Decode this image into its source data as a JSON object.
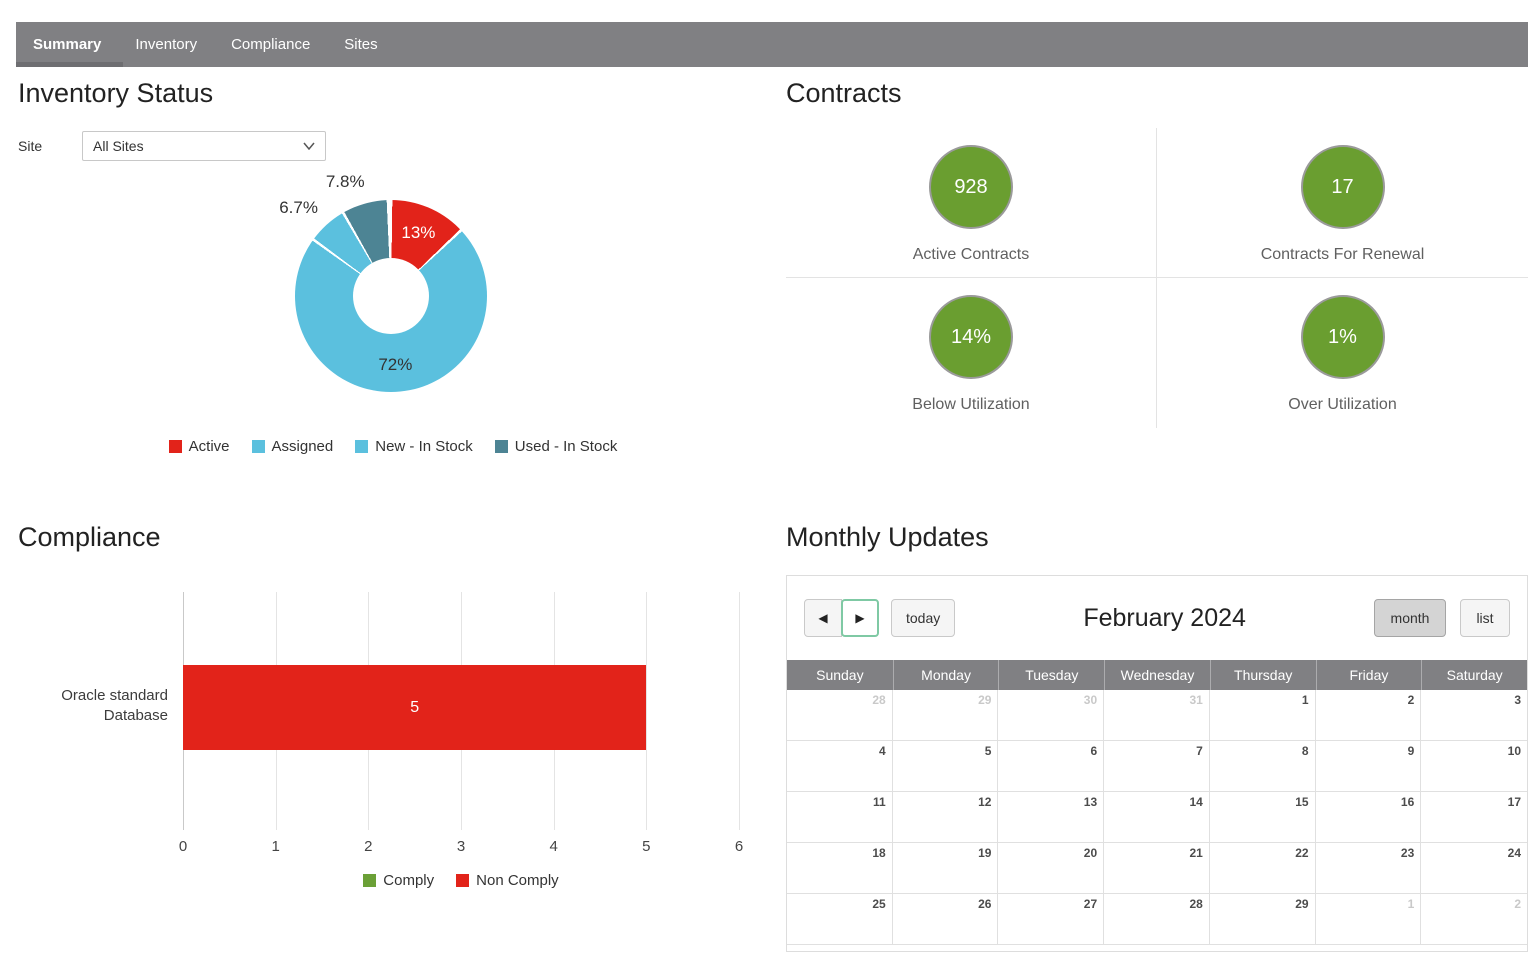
{
  "tabs": {
    "items": [
      {
        "label": "Summary",
        "active": true
      },
      {
        "label": "Inventory",
        "active": false
      },
      {
        "label": "Compliance",
        "active": false
      },
      {
        "label": "Sites",
        "active": false
      }
    ]
  },
  "inventory_status": {
    "title": "Inventory Status",
    "site_label": "Site",
    "site_value": "All Sites"
  },
  "contracts": {
    "title": "Contracts",
    "tiles": [
      {
        "value": "928",
        "label": "Active Contracts"
      },
      {
        "value": "17",
        "label": "Contracts For Renewal"
      },
      {
        "value": "14%",
        "label": "Below Utilization"
      },
      {
        "value": "1%",
        "label": "Over Utilization"
      }
    ]
  },
  "compliance": {
    "title": "Compliance"
  },
  "monthly_updates": {
    "title": "Monthly Updates",
    "calendar": {
      "toolbar": {
        "prev": "◀",
        "next": "▶",
        "today": "today",
        "title": "February 2024",
        "month": "month",
        "list": "list"
      },
      "weekdays": [
        "Sunday",
        "Monday",
        "Tuesday",
        "Wednesday",
        "Thursday",
        "Friday",
        "Saturday"
      ],
      "weeks": [
        [
          {
            "d": 28,
            "o": true
          },
          {
            "d": 29,
            "o": true
          },
          {
            "d": 30,
            "o": true
          },
          {
            "d": 31,
            "o": true
          },
          {
            "d": 1
          },
          {
            "d": 2
          },
          {
            "d": 3
          }
        ],
        [
          {
            "d": 4
          },
          {
            "d": 5
          },
          {
            "d": 6
          },
          {
            "d": 7
          },
          {
            "d": 8
          },
          {
            "d": 9
          },
          {
            "d": 10
          }
        ],
        [
          {
            "d": 11
          },
          {
            "d": 12
          },
          {
            "d": 13
          },
          {
            "d": 14
          },
          {
            "d": 15
          },
          {
            "d": 16
          },
          {
            "d": 17
          }
        ],
        [
          {
            "d": 18
          },
          {
            "d": 19
          },
          {
            "d": 20
          },
          {
            "d": 21
          },
          {
            "d": 22
          },
          {
            "d": 23
          },
          {
            "d": 24
          }
        ],
        [
          {
            "d": 25
          },
          {
            "d": 26
          },
          {
            "d": 27
          },
          {
            "d": 28
          },
          {
            "d": 29
          },
          {
            "d": 1,
            "o": true
          },
          {
            "d": 2,
            "o": true
          }
        ]
      ]
    }
  },
  "chart_data": [
    {
      "type": "pie",
      "subtype": "donut",
      "title": "Inventory Status",
      "legend_position": "bottom",
      "slices": [
        {
          "name": "Active",
          "value": 13,
          "label": "13%",
          "color": "#e2231a",
          "label_position": "inside",
          "label_color": "#ffffff"
        },
        {
          "name": "Assigned",
          "value": 72,
          "label": "72%",
          "color": "#5bc0de",
          "label_position": "inside",
          "label_color": "#333333"
        },
        {
          "name": "New - In Stock",
          "value": 6.7,
          "label": "6.7%",
          "color": "#5bc0de",
          "label_position": "outside",
          "label_color": "#333333"
        },
        {
          "name": "Used - In Stock",
          "value": 7.8,
          "label": "7.8%",
          "color": "#4d8494",
          "label_position": "outside",
          "label_color": "#333333"
        }
      ]
    },
    {
      "type": "bar",
      "orientation": "horizontal",
      "title": "Compliance",
      "categories": [
        "Oracle standard Database"
      ],
      "series": [
        {
          "name": "Comply",
          "color": "#6ba037",
          "values": [
            0
          ]
        },
        {
          "name": "Non Comply",
          "color": "#e2231a",
          "values": [
            5
          ]
        }
      ],
      "xlim": [
        0,
        6
      ],
      "xticks": [
        0,
        1,
        2,
        3,
        4,
        5,
        6
      ],
      "grid": true,
      "legend_position": "bottom"
    }
  ]
}
